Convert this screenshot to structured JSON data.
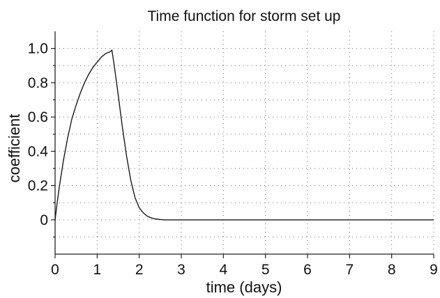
{
  "chart_data": {
    "type": "line",
    "title": "Time function for storm set up",
    "xlabel": "time (days)",
    "ylabel": "coefficient",
    "xlim": [
      0,
      9
    ],
    "ylim": [
      -0.2,
      1.1
    ],
    "x_ticks": [
      0,
      1,
      2,
      3,
      4,
      5,
      6,
      7,
      8,
      9
    ],
    "y_ticks": [
      0,
      0.2,
      0.4,
      0.6,
      0.8,
      1.0
    ],
    "x_tick_labels": [
      "0",
      "1",
      "2",
      "3",
      "4",
      "5",
      "6",
      "7",
      "8",
      "9"
    ],
    "y_tick_labels": [
      "0",
      "0.2",
      "0.4",
      "0.6",
      "0.8",
      "1.0"
    ],
    "grid": true,
    "series": [
      {
        "x": [
          0,
          0.05,
          0.1,
          0.2,
          0.3,
          0.4,
          0.5,
          0.6,
          0.7,
          0.8,
          0.9,
          1.0,
          1.1,
          1.2,
          1.3,
          1.35,
          1.4,
          1.5,
          1.6,
          1.7,
          1.8,
          1.9,
          2.0,
          2.1,
          2.2,
          2.3,
          2.4,
          2.5,
          2.6,
          2.8,
          3.0,
          4.0,
          5.0,
          6.0,
          7.0,
          8.0,
          9.0
        ],
        "y": [
          0.0,
          0.1,
          0.19,
          0.35,
          0.48,
          0.59,
          0.67,
          0.74,
          0.8,
          0.85,
          0.89,
          0.92,
          0.95,
          0.97,
          0.98,
          0.99,
          0.91,
          0.73,
          0.54,
          0.37,
          0.23,
          0.13,
          0.07,
          0.04,
          0.02,
          0.01,
          0.005,
          0.002,
          0.0,
          0.0,
          0.0,
          0.0,
          0.0,
          0.0,
          0.0,
          0.0,
          0.0
        ]
      }
    ]
  }
}
